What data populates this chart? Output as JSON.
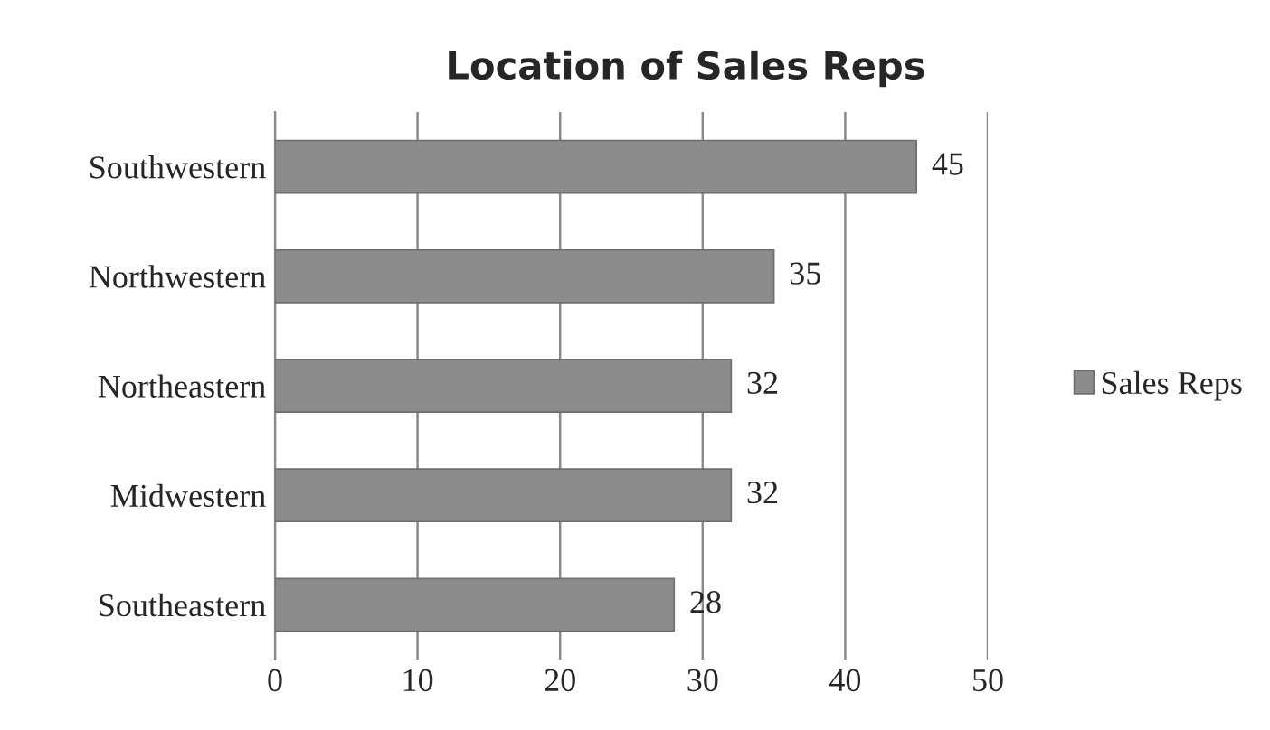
{
  "chart_data": {
    "type": "bar",
    "orientation": "horizontal",
    "title": "Location of Sales Reps",
    "categories": [
      "Southwestern",
      "Northwestern",
      "Northeastern",
      "Midwestern",
      "Southeastern"
    ],
    "series": [
      {
        "name": "Sales Reps",
        "color": "#8c8c8c",
        "values": [
          45,
          35,
          32,
          32,
          28
        ]
      }
    ],
    "xlim": [
      0,
      50
    ],
    "xticks": [
      0,
      10,
      20,
      30,
      40,
      50
    ],
    "grid": "x",
    "legend": "right",
    "data_labels": true
  }
}
